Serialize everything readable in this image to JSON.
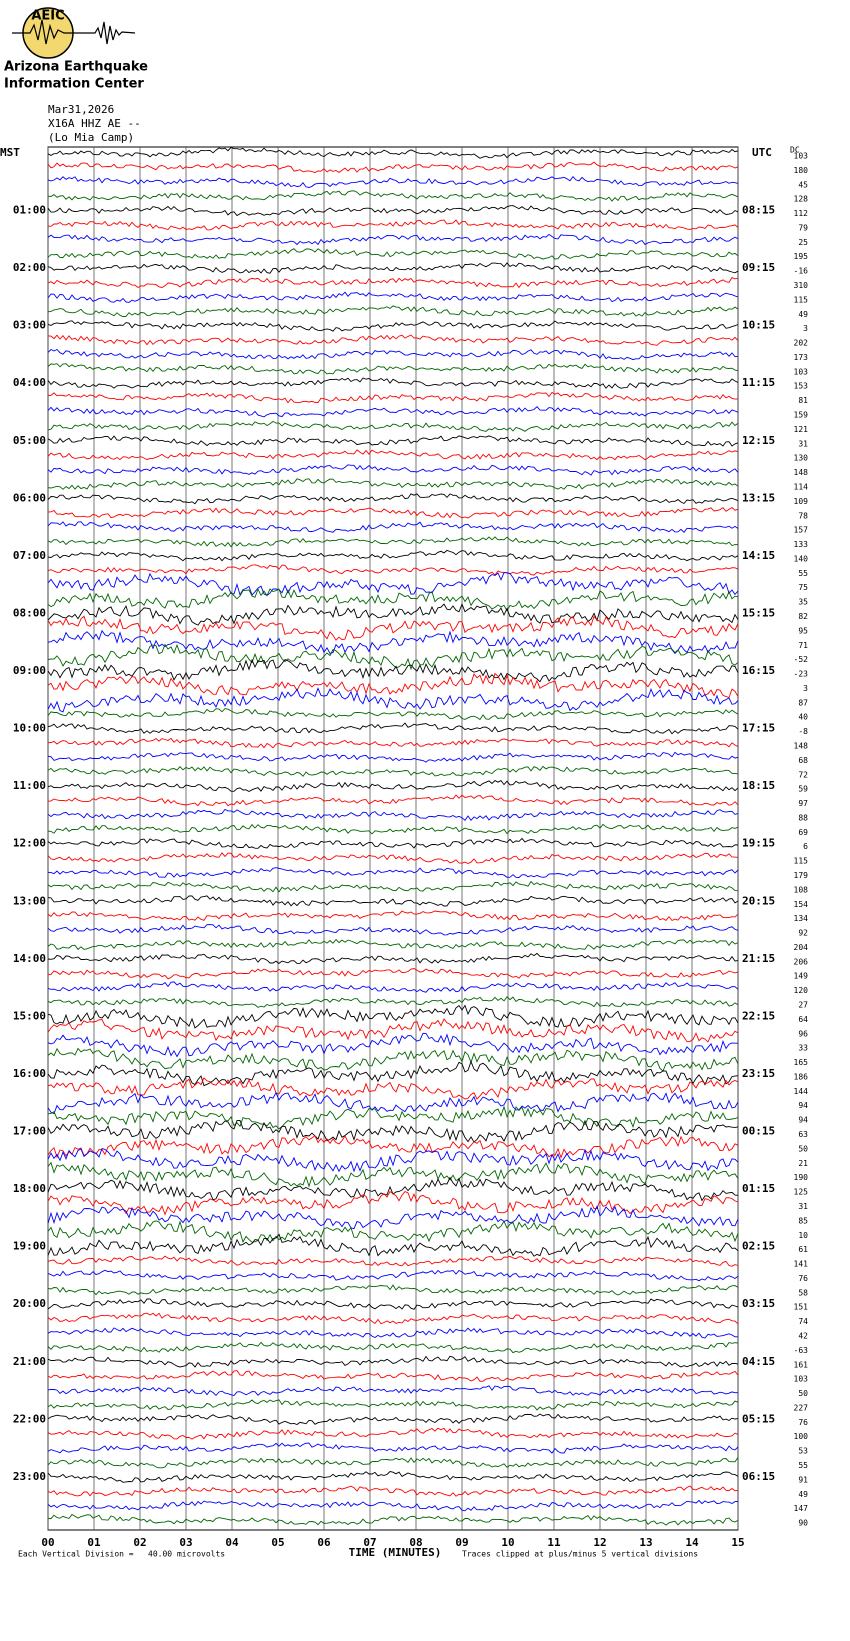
{
  "header": {
    "logo_text": "AEIC",
    "org_line1": "Arizona Earthquake",
    "org_line2": "Information Center",
    "date": "Mar31,2026",
    "station": "X16A HHZ AE --",
    "location": "(Lo Mia Camp)"
  },
  "left_axis": {
    "title": "MST",
    "labels": [
      "01:00",
      "02:00",
      "03:00",
      "04:00",
      "05:00",
      "06:00",
      "07:00",
      "08:00",
      "09:00",
      "10:00",
      "11:00",
      "12:00",
      "13:00",
      "14:00",
      "15:00",
      "16:00",
      "17:00",
      "18:00",
      "19:00",
      "20:00",
      "21:00",
      "22:00",
      "23:00"
    ]
  },
  "right_axis": {
    "title": "UTC",
    "labels": [
      "08:15",
      "09:15",
      "10:15",
      "11:15",
      "12:15",
      "13:15",
      "14:15",
      "15:15",
      "16:15",
      "17:15",
      "18:15",
      "19:15",
      "20:15",
      "21:15",
      "22:15",
      "23:15",
      "00:15",
      "01:15",
      "02:15",
      "03:15",
      "04:15",
      "05:15",
      "06:15"
    ]
  },
  "dc": {
    "title": "DC",
    "values": [
      103,
      180,
      45,
      128,
      112,
      79,
      25,
      195,
      -16,
      310,
      115,
      49,
      3,
      202,
      173,
      103,
      153,
      81,
      159,
      121,
      31,
      130,
      148,
      114,
      109,
      78,
      157,
      133,
      140,
      55,
      75,
      35,
      82,
      95,
      71,
      -52,
      -23,
      3,
      87,
      40,
      -8,
      148,
      68,
      72,
      59,
      97,
      88,
      69,
      6,
      115,
      179,
      108,
      154,
      134,
      92,
      204,
      206,
      149,
      120,
      27,
      64,
      96,
      33,
      165,
      186,
      144,
      94,
      94,
      63,
      50,
      21,
      190,
      125,
      31,
      85,
      10,
      61,
      141,
      76,
      58,
      151,
      74,
      42,
      -63,
      161,
      103,
      50,
      227,
      76,
      100,
      53,
      55,
      91,
      49,
      147,
      90
    ]
  },
  "x_axis": {
    "title": "TIME (MINUTES)",
    "ticks": [
      "00",
      "01",
      "02",
      "03",
      "04",
      "05",
      "06",
      "07",
      "08",
      "09",
      "10",
      "11",
      "12",
      "13",
      "14",
      "15"
    ]
  },
  "footer": {
    "scale": "Each Vertical Division =   40.00 microvolts",
    "clip": "Traces clipped at plus/minus 5 vertical divisions"
  },
  "trace_colors": [
    "#000000",
    "#ff0000",
    "#0000ff",
    "#006400"
  ]
}
